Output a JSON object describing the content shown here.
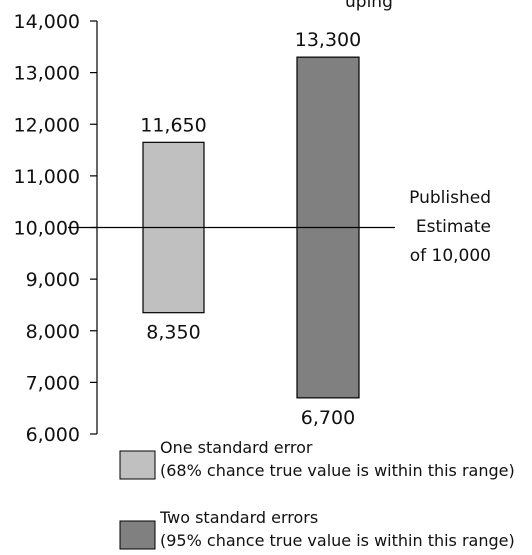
{
  "chart_data": {
    "type": "bar",
    "ylim": [
      6000,
      14000
    ],
    "ytick_values": [
      6000,
      7000,
      8000,
      9000,
      10000,
      11000,
      12000,
      13000,
      14000
    ],
    "ytick_labels": [
      "6,000",
      "7,000",
      "8,000",
      "9,000",
      "10,000",
      "11,000",
      "12,000",
      "13,000",
      "14,000"
    ],
    "series": [
      {
        "name": "One standard error",
        "low": 8350,
        "high": 11650,
        "low_label": "8,350",
        "high_label": "11,650",
        "color": "#c0c0c0"
      },
      {
        "name": "Two standard errors",
        "low": 6700,
        "high": 13300,
        "low_label": "6,700",
        "high_label": "13,300",
        "color": "#808080"
      }
    ],
    "reference_line": {
      "value": 10000,
      "label_lines": [
        "Published",
        "Estimate",
        "of 10,000"
      ]
    },
    "top_text_fragment": "uping",
    "legend": [
      {
        "line1": "One standard error",
        "line2": "(68% chance true value is within this range)",
        "color": "#c0c0c0"
      },
      {
        "line1": "Two standard errors",
        "line2": "(95% chance true value is within this range)",
        "color": "#808080"
      }
    ]
  }
}
